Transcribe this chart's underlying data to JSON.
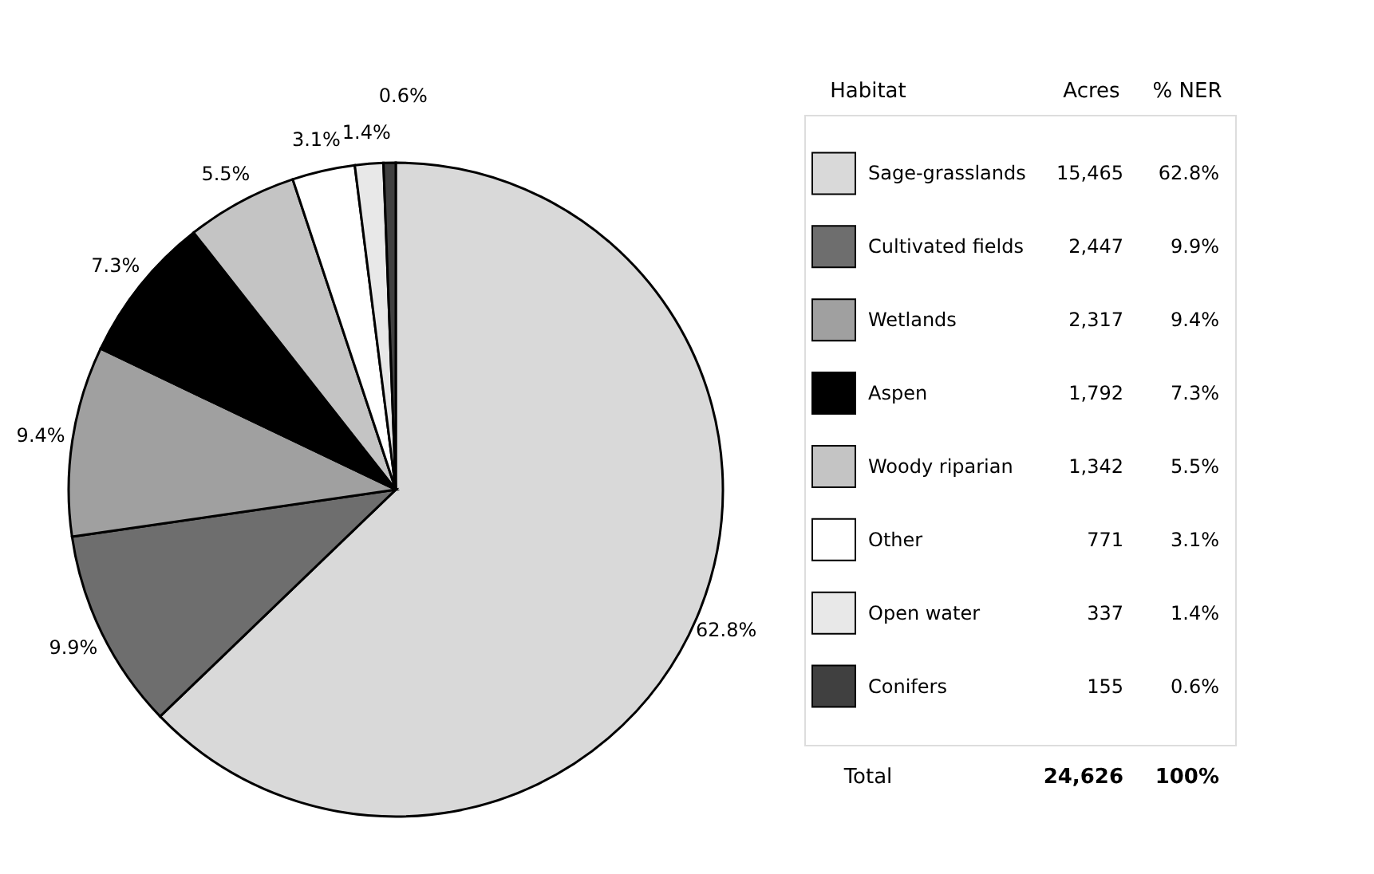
{
  "chart_data": {
    "type": "pie",
    "categories": [
      "Sage-grasslands",
      "Cultivated fields",
      "Wetlands",
      "Aspen",
      "Woody riparian",
      "Other",
      "Open water",
      "Conifers"
    ],
    "values": [
      62.8,
      9.9,
      9.4,
      7.3,
      5.5,
      3.1,
      1.4,
      0.6
    ],
    "value_labels": [
      "62.8%",
      "9.9%",
      "9.4%",
      "7.3%",
      "5.5%",
      "3.1%",
      "1.4%",
      "0.6%"
    ],
    "colors": [
      "#d9d9d9",
      "#6e6e6e",
      "#a0a0a0",
      "#000000",
      "#c4c4c4",
      "#ffffff",
      "#e8e8e8",
      "#404040"
    ],
    "legend_title": "Habitat",
    "legend": "right",
    "annotations": [
      "Acres",
      "% NER",
      "15,465",
      "2,447",
      "2,317",
      "1,792",
      "1,342",
      "771",
      "337",
      "155",
      "Total",
      "24,626",
      "100%"
    ]
  }
}
